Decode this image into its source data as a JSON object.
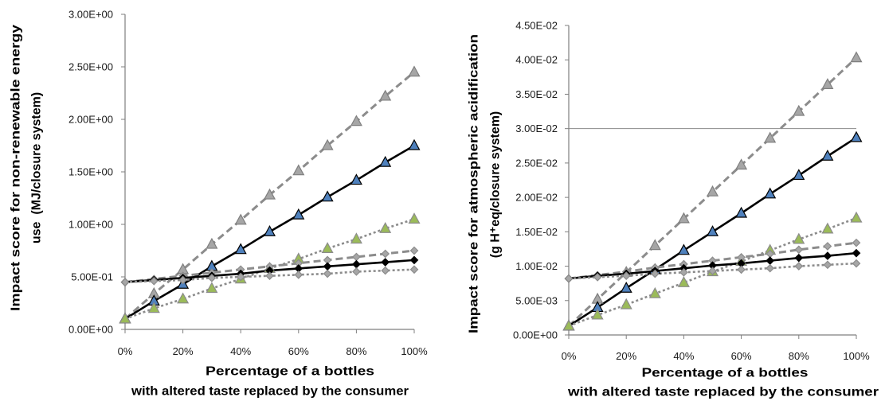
{
  "chart_data": [
    {
      "type": "line",
      "xlabel": [
        "Percentage of a bottles",
        "with altered taste replaced by the consumer"
      ],
      "ylabel": [
        "Impact score for non-renewable energy",
        "use  (MJ/closure system)"
      ],
      "x": [
        0,
        10,
        20,
        30,
        40,
        50,
        60,
        70,
        80,
        90,
        100
      ],
      "xlim": [
        0,
        100
      ],
      "xticks": [
        0,
        20,
        40,
        60,
        80,
        100
      ],
      "xtick_labels": [
        "0%",
        "20%",
        "40%",
        "60%",
        "80%",
        "100%"
      ],
      "ylim": [
        0,
        3
      ],
      "yticks": [
        0,
        0.5,
        1,
        1.5,
        2,
        2.5,
        3
      ],
      "ytick_labels": [
        "0.00E+00",
        "5.00E-01",
        "1.00E+00",
        "1.50E+00",
        "2.00E+00",
        "2.50E+00",
        "3.00E+00"
      ],
      "gridlines": [],
      "legend": "none",
      "series": [
        {
          "line_color": "#8c8c8c",
          "line_style": "dashed",
          "marker": "triangle",
          "marker_fill": "#a6a6a6",
          "marker_stroke": "#7f7f7f",
          "values": [
            0.1,
            0.34,
            0.57,
            0.81,
            1.04,
            1.28,
            1.51,
            1.75,
            1.98,
            2.22,
            2.45
          ]
        },
        {
          "line_color": "#000000",
          "line_style": "solid",
          "marker": "triangle",
          "marker_fill": "#4f81bd",
          "marker_stroke": "#000000",
          "values": [
            0.1,
            0.27,
            0.43,
            0.6,
            0.76,
            0.93,
            1.09,
            1.26,
            1.42,
            1.59,
            1.75
          ]
        },
        {
          "line_color": "#8c8c8c",
          "line_style": "dotted",
          "marker": "triangle",
          "marker_fill": "#9bbb59",
          "marker_stroke": "#8c8c8c",
          "values": [
            0.1,
            0.2,
            0.29,
            0.39,
            0.48,
            0.58,
            0.67,
            0.77,
            0.86,
            0.96,
            1.05
          ]
        },
        {
          "line_color": "#8c8c8c",
          "line_style": "dashed",
          "marker": "diamond",
          "marker_fill": "#a6a6a6",
          "marker_stroke": "#8c8c8c",
          "values": [
            0.45,
            0.48,
            0.51,
            0.54,
            0.57,
            0.6,
            0.63,
            0.66,
            0.69,
            0.72,
            0.75
          ]
        },
        {
          "line_color": "#000000",
          "line_style": "solid",
          "marker": "diamond",
          "marker_fill": "#000000",
          "marker_stroke": "#000000",
          "values": [
            0.45,
            0.47,
            0.49,
            0.51,
            0.53,
            0.56,
            0.58,
            0.6,
            0.62,
            0.64,
            0.66
          ]
        },
        {
          "line_color": "#8c8c8c",
          "line_style": "dotted",
          "marker": "diamond",
          "marker_fill": "#a6a6a6",
          "marker_stroke": "#8c8c8c",
          "values": [
            0.45,
            0.46,
            0.47,
            0.49,
            0.5,
            0.51,
            0.52,
            0.53,
            0.55,
            0.56,
            0.57
          ]
        }
      ]
    },
    {
      "type": "line",
      "xlabel": [
        "Percentage of a bottles",
        "with altered taste replaced by the consumer"
      ],
      "ylabel": [
        "Impact score for atmospheric acidification",
        "(g H⁺eq/closure system)"
      ],
      "x": [
        0,
        10,
        20,
        30,
        40,
        50,
        60,
        70,
        80,
        90,
        100
      ],
      "xlim": [
        0,
        100
      ],
      "xticks": [
        0,
        20,
        40,
        60,
        80,
        100
      ],
      "xtick_labels": [
        "0%",
        "20%",
        "40%",
        "60%",
        "80%",
        "100%"
      ],
      "ylim": [
        0,
        0.045
      ],
      "yticks": [
        0,
        0.005,
        0.01,
        0.015,
        0.02,
        0.025,
        0.03,
        0.035,
        0.04,
        0.045
      ],
      "ytick_labels": [
        "0.00E+00",
        "5.00E-03",
        "1.00E-02",
        "1.50E-02",
        "2.00E-02",
        "2.50E-02",
        "3.00E-02",
        "3.50E-02",
        "4.00E-02",
        "4.50E-02"
      ],
      "gridlines": [
        0.03
      ],
      "legend": "none",
      "series": [
        {
          "line_color": "#8c8c8c",
          "line_style": "dashed",
          "marker": "triangle",
          "marker_fill": "#a6a6a6",
          "marker_stroke": "#7f7f7f",
          "values": [
            0.0013,
            0.0052,
            0.0091,
            0.013,
            0.0169,
            0.0208,
            0.0247,
            0.0286,
            0.0325,
            0.0364,
            0.0403
          ]
        },
        {
          "line_color": "#000000",
          "line_style": "solid",
          "marker": "triangle",
          "marker_fill": "#4f81bd",
          "marker_stroke": "#000000",
          "values": [
            0.0013,
            0.004,
            0.0068,
            0.0095,
            0.0123,
            0.015,
            0.0177,
            0.0205,
            0.0232,
            0.026,
            0.0287
          ]
        },
        {
          "line_color": "#8c8c8c",
          "line_style": "dotted",
          "marker": "triangle",
          "marker_fill": "#9bbb59",
          "marker_stroke": "#8c8c8c",
          "values": [
            0.0013,
            0.0029,
            0.0044,
            0.006,
            0.0076,
            0.0092,
            0.0107,
            0.0123,
            0.0139,
            0.0154,
            0.017
          ]
        },
        {
          "line_color": "#8c8c8c",
          "line_style": "dashed",
          "marker": "diamond",
          "marker_fill": "#a6a6a6",
          "marker_stroke": "#8c8c8c",
          "values": [
            0.0082,
            0.0087,
            0.0092,
            0.0098,
            0.0103,
            0.0108,
            0.0113,
            0.0118,
            0.0124,
            0.0129,
            0.0134
          ]
        },
        {
          "line_color": "#000000",
          "line_style": "solid",
          "marker": "diamond",
          "marker_fill": "#000000",
          "marker_stroke": "#000000",
          "values": [
            0.0082,
            0.0086,
            0.0089,
            0.0093,
            0.0097,
            0.0101,
            0.0104,
            0.0108,
            0.0112,
            0.0115,
            0.0119
          ]
        },
        {
          "line_color": "#8c8c8c",
          "line_style": "dotted",
          "marker": "diamond",
          "marker_fill": "#a6a6a6",
          "marker_stroke": "#8c8c8c",
          "values": [
            0.0082,
            0.0084,
            0.0086,
            0.0089,
            0.0091,
            0.0093,
            0.0095,
            0.0097,
            0.01,
            0.0102,
            0.0104
          ]
        }
      ]
    }
  ]
}
